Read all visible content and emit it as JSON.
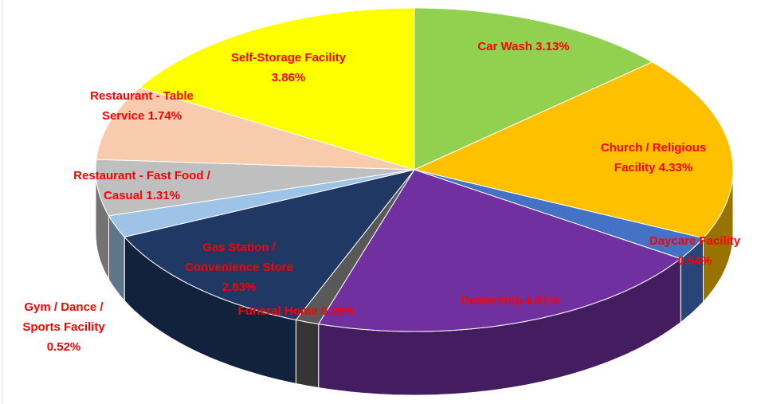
{
  "chart_data": {
    "type": "pie",
    "categories": [
      "Car Wash",
      "Church / Religious Facility",
      "Daycare Facility",
      "Dealership",
      "Funeral Home",
      "Gas Station / Convenience Store",
      "Gym / Dance / Sports Facility",
      "Restaurant - Fast Food / Casual",
      "Restaurant - Table Service",
      "Self-Storage Facility"
    ],
    "values": [
      3.13,
      4.33,
      0.54,
      4.81,
      0.28,
      2.83,
      0.52,
      1.31,
      1.74,
      3.86
    ],
    "value_labels": [
      "3.13%",
      "4.33%",
      "0.54%",
      "4.81%",
      "0.28%",
      "2.83%",
      "0.52%",
      "1.31%",
      "1.74%",
      "3.86%"
    ],
    "colors": [
      "#92d050",
      "#ffc000",
      "#4472c4",
      "#7030a0",
      "#595959",
      "#203864",
      "#9dc3e6",
      "#bfbfbf",
      "#f8cbad",
      "#ffff00"
    ]
  }
}
